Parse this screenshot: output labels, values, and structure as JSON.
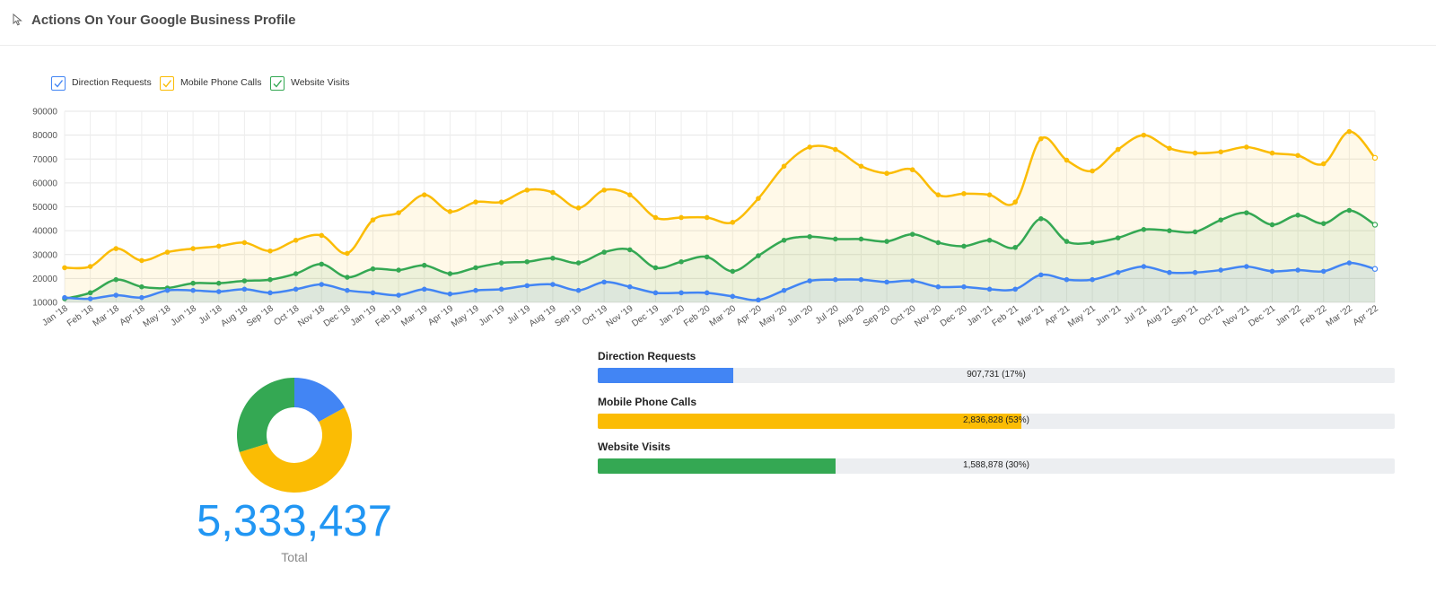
{
  "header": {
    "title": "Actions On Your Google Business Profile",
    "icon": "cursor-icon"
  },
  "colors": {
    "direction": "#4285f4",
    "calls": "#fbbc04",
    "visits": "#34a853",
    "total": "#2196f3",
    "track": "#eceef1"
  },
  "legend": [
    {
      "label": "Direction Requests",
      "color": "#4285f4"
    },
    {
      "label": "Mobile Phone Calls",
      "color": "#fbbc04"
    },
    {
      "label": "Website Visits",
      "color": "#34a853"
    }
  ],
  "chart_data": [
    {
      "type": "area",
      "x": [
        "Jan '18",
        "Feb '18",
        "Mar '18",
        "Apr '18",
        "May '18",
        "Jun '18",
        "Jul '18",
        "Aug '18",
        "Sep '18",
        "Oct '18",
        "Nov '18",
        "Dec '18",
        "Jan '19",
        "Feb '19",
        "Mar '19",
        "Apr '19",
        "May '19",
        "Jun '19",
        "Jul '19",
        "Aug '19",
        "Sep '19",
        "Oct '19",
        "Nov '19",
        "Dec '19",
        "Jan '20",
        "Feb '20",
        "Mar '20",
        "Apr '20",
        "May '20",
        "Jun '20",
        "Jul '20",
        "Aug '20",
        "Sep '20",
        "Oct '20",
        "Nov '20",
        "Dec '20",
        "Jan '21",
        "Feb '21",
        "Mar '21",
        "Apr '21",
        "May '21",
        "Jun '21",
        "Jul '21",
        "Aug '21",
        "Sep '21",
        "Oct '21",
        "Nov '21",
        "Dec '21",
        "Jan '22",
        "Feb '22",
        "Mar '22",
        "Apr '22"
      ],
      "ylim": [
        10000,
        90000
      ],
      "yticks": [
        10000,
        20000,
        30000,
        40000,
        50000,
        60000,
        70000,
        80000,
        90000
      ],
      "grid": true,
      "legend_position": "top-left",
      "series": [
        {
          "name": "Mobile Phone Calls",
          "color": "#fbbc04",
          "values": [
            24500,
            25000,
            32500,
            27500,
            31000,
            32500,
            33500,
            35000,
            31500,
            36000,
            38000,
            30500,
            44500,
            47500,
            55000,
            48000,
            52000,
            52000,
            57000,
            56000,
            49500,
            57000,
            55000,
            45500,
            45500,
            45500,
            43500,
            53500,
            67000,
            75000,
            74000,
            67000,
            64000,
            65500,
            55000,
            55500,
            55000,
            52000,
            78500,
            69500,
            65000,
            74000,
            80000,
            74500,
            72500,
            73000,
            75000,
            72500,
            71500,
            68000,
            81500,
            70500
          ]
        },
        {
          "name": "Website Visits",
          "color": "#34a853",
          "values": [
            11500,
            14000,
            19500,
            16500,
            16000,
            18000,
            18000,
            19000,
            19500,
            22000,
            26000,
            20500,
            24000,
            23500,
            25500,
            22000,
            24500,
            26500,
            27000,
            28500,
            26500,
            31000,
            32000,
            24500,
            27000,
            29000,
            23000,
            29500,
            36000,
            37500,
            36500,
            36500,
            35500,
            38500,
            35000,
            33500,
            36000,
            33000,
            45000,
            35500,
            35000,
            37000,
            40500,
            40000,
            39500,
            44500,
            47500,
            42500,
            46500,
            43000,
            48500,
            42500
          ]
        },
        {
          "name": "Direction Requests",
          "color": "#4285f4",
          "values": [
            12000,
            11500,
            13000,
            12000,
            15000,
            15000,
            14500,
            15500,
            14000,
            15500,
            17500,
            15000,
            14000,
            13000,
            15500,
            13500,
            15000,
            15500,
            17000,
            17500,
            15000,
            18500,
            16500,
            14000,
            14000,
            14000,
            12500,
            11000,
            15000,
            19000,
            19500,
            19500,
            18500,
            19000,
            16500,
            16500,
            15500,
            15500,
            21500,
            19500,
            19500,
            22500,
            25000,
            22500,
            22500,
            23500,
            25000,
            23000,
            23500,
            23000,
            26500,
            24000
          ]
        }
      ]
    },
    {
      "type": "pie",
      "donut": true,
      "categories": [
        "Direction Requests",
        "Mobile Phone Calls",
        "Website Visits"
      ],
      "values": [
        907731,
        2836828,
        1588878
      ],
      "colors": [
        "#4285f4",
        "#fbbc04",
        "#34a853"
      ]
    }
  ],
  "summary": {
    "total_value": "5,333,437",
    "total_label": "Total",
    "bars": [
      {
        "label": "Direction Requests",
        "value_text": "907,731 (17%)",
        "fraction": 0.17,
        "color": "#4285f4"
      },
      {
        "label": "Mobile Phone Calls",
        "value_text": "2,836,828 (53%)",
        "fraction": 0.532,
        "color": "#fbbc04"
      },
      {
        "label": "Website Visits",
        "value_text": "1,588,878 (30%)",
        "fraction": 0.298,
        "color": "#34a853"
      }
    ]
  }
}
